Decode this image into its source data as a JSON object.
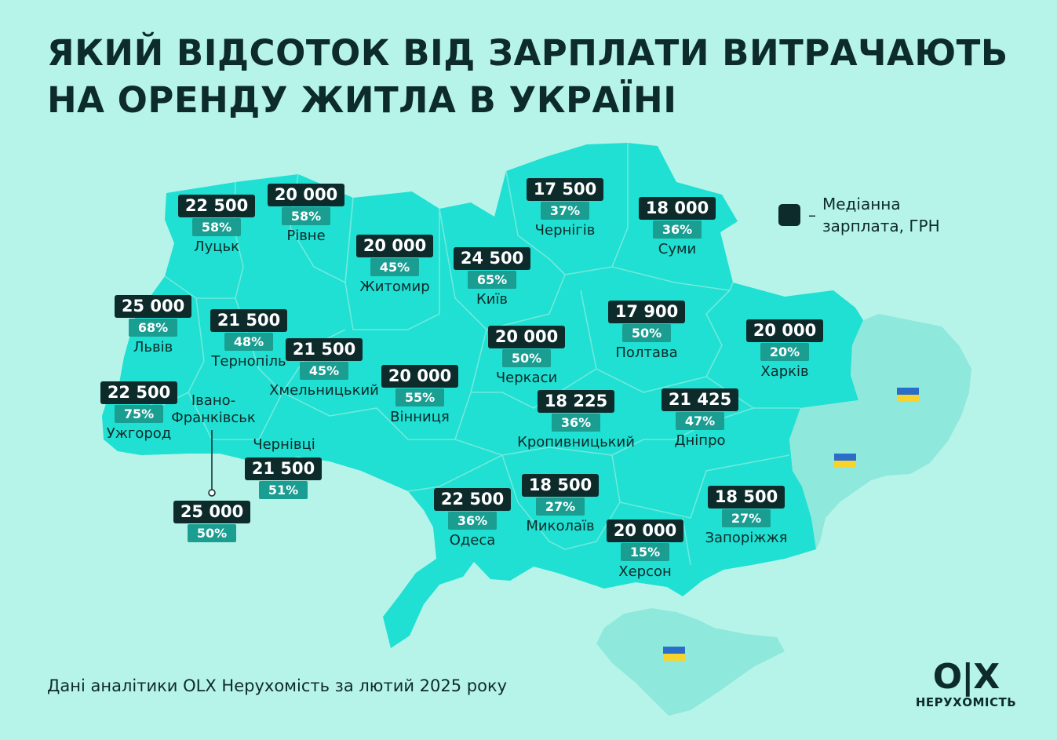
{
  "title": {
    "line1": "ЯКИЙ ВІДСОТОК ВІД ЗАРПЛАТИ ВИТРАЧАЮТЬ",
    "line2": "НА ОРЕНДУ ЖИТЛА В УКРАЇНІ"
  },
  "legend": {
    "dash": "–",
    "line1": "Медіанна",
    "line2": "зарплата, ГРН"
  },
  "footnote": "Дані аналітики OLX Нерухомість за лютий 2025 року",
  "logo": {
    "mark": "O|X",
    "text": "НЕРУХОМІСТЬ"
  },
  "colors": {
    "background": "#b6f4e9",
    "map_fill": "#1fe0d2",
    "occupied_fill": "#8ee8dc",
    "salary_badge": "#0d2b2b",
    "percent_badge": "#1a9e92"
  },
  "icons": {
    "flag": "ukraine-flag-icon",
    "connector": "connector-line"
  },
  "regions": {
    "lutsk": {
      "salary": "22 500",
      "percent": "58%",
      "name": "Луцьк"
    },
    "rivne": {
      "salary": "20 000",
      "percent": "58%",
      "name": "Рівне"
    },
    "zhytomyr": {
      "salary": "20 000",
      "percent": "45%",
      "name": "Житомир"
    },
    "kyiv": {
      "salary": "24 500",
      "percent": "65%",
      "name": "Київ"
    },
    "chernihiv": {
      "salary": "17 500",
      "percent": "37%",
      "name": "Чернігів"
    },
    "sumy": {
      "salary": "18 000",
      "percent": "36%",
      "name": "Суми"
    },
    "lviv": {
      "salary": "25 000",
      "percent": "68%",
      "name": "Львів"
    },
    "ternopil": {
      "salary": "21 500",
      "percent": "48%",
      "name": "Тернопіль"
    },
    "khmelnytskyi": {
      "salary": "21 500",
      "percent": "45%",
      "name": "Хмельницький"
    },
    "vinnytsia": {
      "salary": "20 000",
      "percent": "55%",
      "name": "Вінниця"
    },
    "cherkasy": {
      "salary": "20 000",
      "percent": "50%",
      "name": "Черкаси"
    },
    "poltava": {
      "salary": "17 900",
      "percent": "50%",
      "name": "Полтава"
    },
    "kharkiv": {
      "salary": "20 000",
      "percent": "20%",
      "name": "Харків"
    },
    "uzhhorod": {
      "salary": "22 500",
      "percent": "75%",
      "name": "Ужгород"
    },
    "ivano_frankivsk": {
      "salary": "25 000",
      "percent": "50%",
      "name_line1": "Івано-",
      "name_line2": "Франківськ"
    },
    "chernivtsi": {
      "salary": "21 500",
      "percent": "51%",
      "name": "Чернівці"
    },
    "kropyvnytskyi": {
      "salary": "18 225",
      "percent": "36%",
      "name": "Кропивницький"
    },
    "dnipro": {
      "salary": "21 425",
      "percent": "47%",
      "name": "Дніпро"
    },
    "odesa": {
      "salary": "22 500",
      "percent": "36%",
      "name": "Одеса"
    },
    "mykolaiv": {
      "salary": "18 500",
      "percent": "27%",
      "name": "Миколаїв"
    },
    "zaporizhzhia": {
      "salary": "18 500",
      "percent": "27%",
      "name": "Запоріжжя"
    },
    "kherson": {
      "salary": "20 000",
      "percent": "15%",
      "name": "Херсон"
    }
  }
}
